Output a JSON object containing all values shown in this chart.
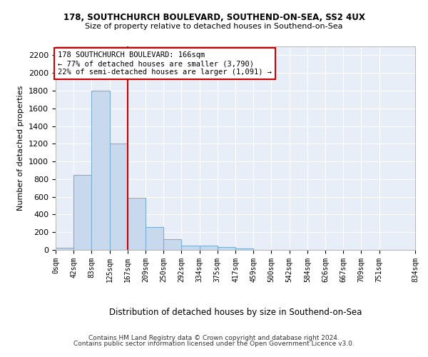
{
  "title1": "178, SOUTHCHURCH BOULEVARD, SOUTHEND-ON-SEA, SS2 4UX",
  "title2": "Size of property relative to detached houses in Southend-on-Sea",
  "xlabel": "Distribution of detached houses by size in Southend-on-Sea",
  "ylabel": "Number of detached properties",
  "bar_values": [
    25,
    845,
    1800,
    1200,
    590,
    260,
    125,
    50,
    45,
    30,
    15,
    0,
    0,
    0,
    0,
    0,
    0,
    0,
    0
  ],
  "bin_edges": [
    0,
    42,
    83,
    125,
    167,
    209,
    250,
    292,
    334,
    375,
    417,
    459,
    500,
    542,
    584,
    626,
    667,
    709,
    751,
    834
  ],
  "tick_labels": [
    "0sqm",
    "42sqm",
    "83sqm",
    "125sqm",
    "167sqm",
    "209sqm",
    "250sqm",
    "292sqm",
    "334sqm",
    "375sqm",
    "417sqm",
    "459sqm",
    "500sqm",
    "542sqm",
    "584sqm",
    "626sqm",
    "667sqm",
    "709sqm",
    "751sqm",
    "834sqm"
  ],
  "bar_color": "#c8d9ee",
  "bar_edge_color": "#7bafd4",
  "vline_x": 167,
  "vline_color": "#cc0000",
  "annotation_text": "178 SOUTHCHURCH BOULEVARD: 166sqm\n← 77% of detached houses are smaller (3,790)\n22% of semi-detached houses are larger (1,091) →",
  "annotation_box_color": "#ffffff",
  "annotation_box_edge": "#cc0000",
  "ylim": [
    0,
    2300
  ],
  "yticks": [
    0,
    200,
    400,
    600,
    800,
    1000,
    1200,
    1400,
    1600,
    1800,
    2000,
    2200
  ],
  "footer1": "Contains HM Land Registry data © Crown copyright and database right 2024.",
  "footer2": "Contains public sector information licensed under the Open Government Licence v3.0.",
  "plot_bg_color": "#e8eef8"
}
